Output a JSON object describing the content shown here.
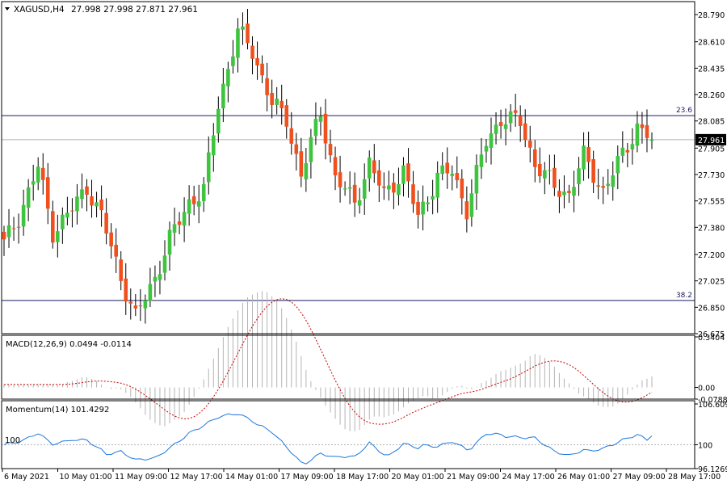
{
  "header": {
    "symbol_label": "XAGUSD,H4",
    "ohlc": "27.998 27.998 27.871 27.961"
  },
  "price_axis": {
    "ticks": [
      "28.790",
      "28.610",
      "28.435",
      "28.260",
      "28.085",
      "27.905",
      "27.730",
      "27.555",
      "27.380",
      "27.200",
      "27.025",
      "26.850",
      "26.675"
    ],
    "current_price_label": "27.961"
  },
  "fib_levels": [
    {
      "label": "23.6",
      "value": 28.12
    },
    {
      "label": "38.2",
      "value": 26.895
    }
  ],
  "macd": {
    "label": "MACD(12,26,9) 0.0494 -0.0114",
    "ticks": [
      "0.3404",
      "0.00",
      "-0.0788"
    ]
  },
  "momentum": {
    "label": "Momentum(14) 101.4292",
    "ticks": [
      "106.6098",
      "100",
      "96.1269"
    ],
    "left_level_label": "100"
  },
  "time_axis": {
    "labels": [
      "6 May 2021",
      "10 May 01:00",
      "11 May 09:00",
      "12 May 17:00",
      "14 May 01:00",
      "17 May 09:00",
      "18 May 17:00",
      "20 May 01:00",
      "21 May 09:00",
      "24 May 17:00",
      "26 May 01:00",
      "27 May 09:00",
      "28 May 17:00"
    ]
  },
  "colors": {
    "bull": "#3ec43e",
    "bear": "#f0501e",
    "wick": "#000000",
    "macd_hist": "#b4b4b4",
    "macd_signal": "#c80000",
    "momentum_line": "#1e78dc",
    "grid_frame": "#000000",
    "fib_line": "#1a1a60"
  },
  "chart_data": {
    "type": "candlestick",
    "symbol": "XAGUSD",
    "timeframe": "H4",
    "ylim": [
      26.675,
      28.86
    ],
    "close_anchor_points": [
      {
        "x": "6 May 2021",
        "close": 27.27
      },
      {
        "x": "7 May",
        "close": 27.45
      },
      {
        "x": "10 May 01:00",
        "close": 27.78
      },
      {
        "x": "10 May 13:00",
        "close": 27.35
      },
      {
        "x": "11 May 09:00",
        "close": 27.5
      },
      {
        "x": "11 May 21:00",
        "close": 27.65
      },
      {
        "x": "12 May 09:00",
        "close": 27.45
      },
      {
        "x": "12 May 17:00",
        "close": 27.05
      },
      {
        "x": "13 May 05:00",
        "close": 26.78
      },
      {
        "x": "13 May 17:00",
        "close": 27.05
      },
      {
        "x": "14 May 01:00",
        "close": 27.3
      },
      {
        "x": "14 May 13:00",
        "close": 27.55
      },
      {
        "x": "17 May 01:00",
        "close": 27.62
      },
      {
        "x": "17 May 09:00",
        "close": 28.2
      },
      {
        "x": "17 May 13:00",
        "close": 28.68
      },
      {
        "x": "17 May 21:00",
        "close": 28.55
      },
      {
        "x": "18 May 05:00",
        "close": 28.2
      },
      {
        "x": "18 May 17:00",
        "close": 28.1
      },
      {
        "x": "19 May 01:00",
        "close": 27.72
      },
      {
        "x": "19 May 13:00",
        "close": 28.15
      },
      {
        "x": "19 May 21:00",
        "close": 27.7
      },
      {
        "x": "20 May 01:00",
        "close": 27.55
      },
      {
        "x": "20 May 13:00",
        "close": 27.8
      },
      {
        "x": "20 May 21:00",
        "close": 27.6
      },
      {
        "x": "21 May 09:00",
        "close": 27.75
      },
      {
        "x": "21 May 13:00",
        "close": 27.45
      },
      {
        "x": "21 May 21:00",
        "close": 27.72
      },
      {
        "x": "24 May 09:00",
        "close": 27.75
      },
      {
        "x": "24 May 17:00",
        "close": 27.5
      },
      {
        "x": "25 May 09:00",
        "close": 27.95
      },
      {
        "x": "25 May 21:00",
        "close": 28.1
      },
      {
        "x": "26 May 01:00",
        "close": 28.08
      },
      {
        "x": "26 May 09:00",
        "close": 27.8
      },
      {
        "x": "26 May 21:00",
        "close": 27.65
      },
      {
        "x": "27 May 09:00",
        "close": 27.6
      },
      {
        "x": "27 May 21:00",
        "close": 27.85
      },
      {
        "x": "28 May 05:00",
        "close": 27.62
      },
      {
        "x": "28 May 13:00",
        "close": 27.8
      },
      {
        "x": "28 May 17:00",
        "close": 28.05
      },
      {
        "x": "28 May 21:00",
        "close": 27.961
      }
    ],
    "fib_lines": [
      {
        "label": "23.6",
        "value": 28.12
      },
      {
        "label": "38.2",
        "value": 26.895
      }
    ],
    "gray_line_value": 27.961,
    "macd_range": [
      -0.0788,
      0.3404
    ],
    "momentum_range": [
      96.1269,
      106.6098
    ],
    "momentum_level": 100,
    "xlabel": "",
    "ylabel": ""
  }
}
